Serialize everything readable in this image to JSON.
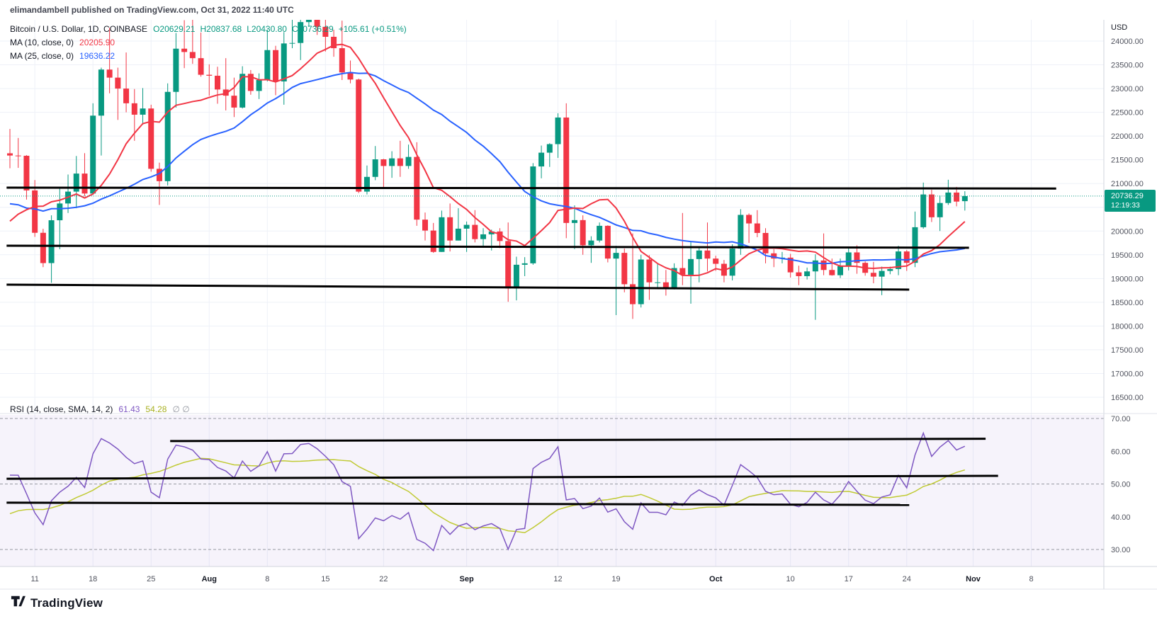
{
  "header": {
    "title": "elimandambell published on TradingView.com, Oct 31, 2022 11:40 UTC"
  },
  "legend": {
    "symbol": "Bitcoin / U.S. Dollar, 1D, COINBASE",
    "ohlc": {
      "o_label": "O",
      "o": "20629.21",
      "h_label": "H",
      "h": "20837.68",
      "l_label": "L",
      "l": "20430.80",
      "c_label": "C",
      "c": "20736.29",
      "change": "+105.61 (+0.51%)"
    },
    "ma10": {
      "label": "MA (10, close, 0)",
      "value": "20205.90"
    },
    "ma25": {
      "label": "MA (25, close, 0)",
      "value": "19636.22"
    }
  },
  "rsi_legend": {
    "label": "RSI (14, close, SMA, 14, 2)",
    "rsi_value": "61.43",
    "sma_value": "54.28",
    "extra": "∅ ∅"
  },
  "price_axis": {
    "currency_label": "USD",
    "ticks": [
      "24000.00",
      "23500.00",
      "23000.00",
      "22500.00",
      "22000.00",
      "21500.00",
      "21000.00",
      "20000.00",
      "19500.00",
      "19000.00",
      "18500.00",
      "18000.00",
      "17500.00",
      "17000.00",
      "16500.00"
    ],
    "last_price": "20736.29",
    "countdown": "12:19:33"
  },
  "rsi_axis": {
    "ticks": [
      "70.00",
      "60.00",
      "50.00",
      "40.00",
      "30.00"
    ]
  },
  "time_axis": {
    "ticks": [
      {
        "label": "11",
        "index": 3
      },
      {
        "label": "18",
        "index": 10
      },
      {
        "label": "25",
        "index": 17
      },
      {
        "label": "Aug",
        "index": 24,
        "month": true
      },
      {
        "label": "8",
        "index": 31
      },
      {
        "label": "15",
        "index": 38
      },
      {
        "label": "22",
        "index": 45
      },
      {
        "label": "Sep",
        "index": 55,
        "month": true
      },
      {
        "label": "12",
        "index": 66
      },
      {
        "label": "19",
        "index": 73
      },
      {
        "label": "Oct",
        "index": 85,
        "month": true
      },
      {
        "label": "10",
        "index": 94
      },
      {
        "label": "17",
        "index": 101
      },
      {
        "label": "24",
        "index": 108
      },
      {
        "label": "Nov",
        "index": 116,
        "month": true
      },
      {
        "label": "8",
        "index": 123
      }
    ]
  },
  "footer": {
    "brand": "TradingView"
  },
  "colors": {
    "up": "#089981",
    "down": "#f23645",
    "ma10": "#f23645",
    "ma25": "#2962ff",
    "rsi": "#7e57c2",
    "rsi_ma": "#c0ca33",
    "trendline": "#000000",
    "grid": "#eef1f8",
    "axis_border": "#d1d4dc",
    "pane_border": "#e0e3eb",
    "level_dash": "#9598a1",
    "rsi_fill": "rgba(126,87,194,0.07)",
    "badge_bg": "#089981"
  },
  "chart_data": {
    "type": "candlestick",
    "title": "Bitcoin / U.S. Dollar",
    "exchange": "COINBASE",
    "interval": "1D",
    "start_date": "2022-07-08",
    "end_date": "2022-10-31",
    "visible_price_range": [
      16187,
      24447
    ],
    "rsi_visible_range": [
      24.8,
      71.1
    ],
    "last_price_line": 20736.29,
    "seed_closes": [
      22487,
      22135,
      22572,
      20381,
      20471,
      19010,
      20553,
      20599,
      20710,
      19987,
      21085,
      21231,
      21502,
      21027,
      20735,
      20280,
      20104,
      19925,
      19279,
      19252,
      19315,
      20231,
      20190,
      20548,
      21637
    ],
    "ohlc": [
      [
        21637,
        22150,
        21321,
        21590
      ],
      [
        21590,
        21960,
        21330,
        21585
      ],
      [
        21585,
        21598,
        20662,
        20855
      ],
      [
        20855,
        21073,
        19877,
        19963
      ],
      [
        19963,
        20047,
        19240,
        19325
      ],
      [
        19325,
        20331,
        18910,
        20227
      ],
      [
        20227,
        20900,
        19616,
        20580
      ],
      [
        20580,
        21190,
        20380,
        20830
      ],
      [
        20830,
        21580,
        20480,
        21210
      ],
      [
        21210,
        21640,
        20730,
        20790
      ],
      [
        20790,
        22690,
        20760,
        22430
      ],
      [
        22430,
        23440,
        21590,
        23400
      ],
      [
        23400,
        24280,
        22900,
        23230
      ],
      [
        23230,
        23440,
        22340,
        23000
      ],
      [
        23000,
        23760,
        22500,
        22690
      ],
      [
        22690,
        22990,
        21900,
        22450
      ],
      [
        22450,
        23010,
        22240,
        22580
      ],
      [
        22580,
        22660,
        21250,
        21310
      ],
      [
        21310,
        21440,
        20550,
        21050
      ],
      [
        21050,
        23110,
        20960,
        22930
      ],
      [
        22930,
        24170,
        22600,
        23840
      ],
      [
        23840,
        24440,
        23430,
        23770
      ],
      [
        23770,
        24600,
        23520,
        23640
      ],
      [
        23640,
        24180,
        23250,
        23290
      ],
      [
        23290,
        23510,
        22850,
        23270
      ],
      [
        23270,
        23460,
        22680,
        22980
      ],
      [
        22980,
        23640,
        22540,
        22850
      ],
      [
        22850,
        23230,
        22400,
        22600
      ],
      [
        22600,
        23470,
        22580,
        23310
      ],
      [
        23310,
        23390,
        22870,
        22950
      ],
      [
        22950,
        23320,
        22780,
        23180
      ],
      [
        23180,
        24240,
        23150,
        23810
      ],
      [
        23810,
        23900,
        22860,
        23150
      ],
      [
        23150,
        24190,
        22660,
        23950
      ],
      [
        23950,
        24900,
        23850,
        23960
      ],
      [
        23960,
        24450,
        23600,
        24400
      ],
      [
        24400,
        24890,
        24300,
        24450
      ],
      [
        24450,
        25030,
        24130,
        24300
      ],
      [
        24300,
        25210,
        23780,
        24090
      ],
      [
        24090,
        24240,
        23670,
        23850
      ],
      [
        23850,
        24430,
        23180,
        23340
      ],
      [
        23340,
        23590,
        23110,
        23190
      ],
      [
        23190,
        23210,
        20800,
        20830
      ],
      [
        20830,
        21380,
        20770,
        21140
      ],
      [
        21140,
        21790,
        21070,
        21510
      ],
      [
        21510,
        21520,
        20890,
        21370
      ],
      [
        21370,
        21680,
        21120,
        21530
      ],
      [
        21530,
        21900,
        21140,
        21370
      ],
      [
        21370,
        21820,
        21310,
        21560
      ],
      [
        21560,
        21870,
        20110,
        20240
      ],
      [
        20240,
        20390,
        19800,
        20010
      ],
      [
        20010,
        20170,
        19540,
        19560
      ],
      [
        19560,
        20430,
        19560,
        20290
      ],
      [
        20290,
        20580,
        19570,
        19800
      ],
      [
        19800,
        20480,
        19800,
        20050
      ],
      [
        20050,
        20200,
        19560,
        20130
      ],
      [
        20130,
        20440,
        19760,
        19830
      ],
      [
        19830,
        20060,
        19650,
        19930
      ],
      [
        19930,
        20030,
        19590,
        19990
      ],
      [
        19990,
        20060,
        19640,
        19790
      ],
      [
        19790,
        20180,
        18510,
        18790
      ],
      [
        18790,
        19460,
        18540,
        19290
      ],
      [
        19290,
        19450,
        19050,
        19320
      ],
      [
        19320,
        21430,
        19290,
        21360
      ],
      [
        21360,
        21800,
        21110,
        21650
      ],
      [
        21650,
        21850,
        21350,
        21830
      ],
      [
        21830,
        22480,
        21540,
        22390
      ],
      [
        22390,
        22690,
        19850,
        20170
      ],
      [
        20170,
        20540,
        19620,
        20230
      ],
      [
        20230,
        20330,
        19500,
        19700
      ],
      [
        19700,
        19890,
        19330,
        19800
      ],
      [
        19800,
        20180,
        19760,
        20110
      ],
      [
        20110,
        20120,
        19340,
        19420
      ],
      [
        19420,
        19690,
        18230,
        19540
      ],
      [
        19540,
        19630,
        18710,
        18880
      ],
      [
        18880,
        19950,
        18150,
        18460
      ],
      [
        18460,
        19500,
        18390,
        19400
      ],
      [
        19400,
        19490,
        18550,
        18920
      ],
      [
        18920,
        19310,
        18790,
        18920
      ],
      [
        18920,
        19180,
        18640,
        18800
      ],
      [
        18800,
        19320,
        18770,
        19220
      ],
      [
        19220,
        20380,
        18860,
        19080
      ],
      [
        19080,
        19790,
        18470,
        19410
      ],
      [
        19410,
        19640,
        18920,
        19590
      ],
      [
        19590,
        20180,
        19150,
        19420
      ],
      [
        19420,
        19480,
        19160,
        19310
      ],
      [
        19310,
        19390,
        18920,
        19060
      ],
      [
        19060,
        19720,
        18960,
        19630
      ],
      [
        19630,
        20460,
        19500,
        20340
      ],
      [
        20340,
        20370,
        19750,
        20160
      ],
      [
        20160,
        20440,
        19870,
        19960
      ],
      [
        19960,
        20060,
        19320,
        19530
      ],
      [
        19530,
        19620,
        19240,
        19420
      ],
      [
        19420,
        19560,
        19320,
        19440
      ],
      [
        19440,
        19520,
        19020,
        19130
      ],
      [
        19130,
        19270,
        18860,
        19050
      ],
      [
        19050,
        19230,
        18980,
        19150
      ],
      [
        19150,
        19510,
        18130,
        19380
      ],
      [
        19380,
        19950,
        19070,
        19180
      ],
      [
        19180,
        19420,
        19060,
        19070
      ],
      [
        19070,
        19420,
        19010,
        19260
      ],
      [
        19260,
        19670,
        19170,
        19550
      ],
      [
        19550,
        19700,
        19100,
        19330
      ],
      [
        19330,
        19360,
        19060,
        19120
      ],
      [
        19120,
        19350,
        18900,
        19040
      ],
      [
        19040,
        19250,
        18650,
        19160
      ],
      [
        19160,
        19250,
        19090,
        19200
      ],
      [
        19200,
        19690,
        19070,
        19570
      ],
      [
        19570,
        19600,
        19160,
        19330
      ],
      [
        19330,
        20410,
        19240,
        20080
      ],
      [
        20080,
        21020,
        20050,
        20770
      ],
      [
        20770,
        20870,
        20190,
        20290
      ],
      [
        20290,
        20750,
        20000,
        20590
      ],
      [
        20590,
        21080,
        20550,
        20810
      ],
      [
        20810,
        20930,
        20520,
        20620
      ],
      [
        20629.21,
        20837.68,
        20430.8,
        20736.29
      ]
    ],
    "indicators": [
      {
        "name": "MA",
        "length": 10,
        "source": "close",
        "offset": 0,
        "current_value": 20205.9
      },
      {
        "name": "MA",
        "length": 25,
        "source": "close",
        "offset": 0,
        "current_value": 19636.22
      },
      {
        "name": "RSI",
        "length": 14,
        "source": "close",
        "smoothing": "SMA 14",
        "current_value": 61.43,
        "ma_current_value": 54.28,
        "levels": [
          70,
          50,
          30
        ]
      }
    ],
    "trendlines_price": [
      {
        "i1": -0.4,
        "i2": 126.0,
        "p1": 20913,
        "p2": 20895
      },
      {
        "i1": -0.4,
        "i2": 115.5,
        "p1": 19690,
        "p2": 19648
      },
      {
        "i1": -0.4,
        "i2": 108.3,
        "p1": 18871,
        "p2": 18767
      }
    ],
    "trendlines_rsi": [
      {
        "i1": 19.3,
        "i2": 117.5,
        "v1": 63.1,
        "v2": 63.8
      },
      {
        "i1": -0.4,
        "i2": 119.0,
        "v1": 51.6,
        "v2": 52.5
      },
      {
        "i1": -0.4,
        "i2": 108.3,
        "v1": 44.3,
        "v2": 43.6
      }
    ]
  }
}
